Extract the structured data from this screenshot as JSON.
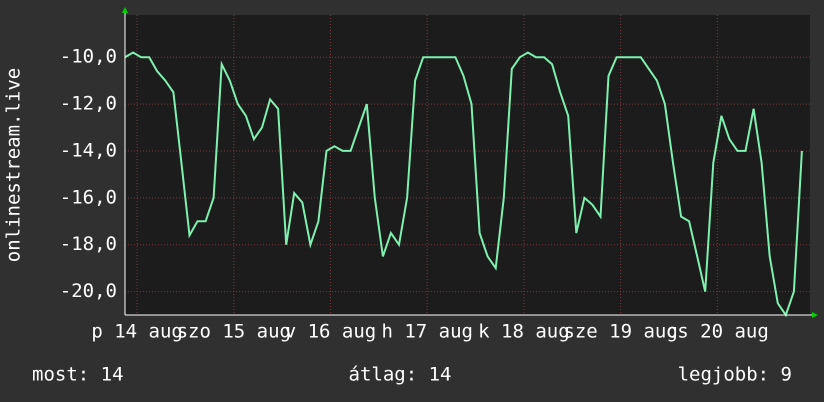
{
  "chart_data": {
    "type": "line",
    "y_label": "onlinestream.live",
    "x": [
      0,
      2,
      4,
      6,
      8,
      10,
      12,
      14,
      16,
      18,
      20,
      22,
      24,
      26,
      28,
      30,
      32,
      34,
      36,
      38,
      40,
      42,
      44,
      46,
      48,
      50,
      52,
      54,
      56,
      58,
      60,
      62,
      64,
      66,
      68,
      70,
      72,
      74,
      76,
      78,
      80,
      82,
      84,
      86,
      88,
      90,
      92,
      94,
      96,
      98,
      100,
      102,
      104,
      106,
      108,
      110,
      112,
      114,
      116,
      118,
      120,
      122,
      124,
      126,
      128,
      130,
      132,
      134,
      136,
      138,
      140,
      142,
      144,
      146,
      148,
      150,
      152,
      154,
      156,
      158,
      160,
      162,
      164,
      166,
      168
    ],
    "series": [
      {
        "name": "onlinestream.live",
        "color": "#7ef0b0",
        "values": [
          -10,
          -9.8,
          -10,
          -10,
          -10.6,
          -11,
          -11.5,
          -14.5,
          -17.6,
          -17,
          -17,
          -16,
          -10.3,
          -11,
          -12,
          -12.5,
          -13.5,
          -13,
          -11.8,
          -12.2,
          -18,
          -15.8,
          -16.2,
          -18,
          -17,
          -14,
          -13.8,
          -14,
          -14,
          -13,
          -12,
          -16,
          -18.5,
          -17.5,
          -18,
          -16,
          -11,
          -10,
          -10,
          -10,
          -10,
          -10,
          -10.8,
          -12,
          -17.5,
          -18.5,
          -19,
          -16,
          -10.5,
          -10,
          -9.8,
          -10,
          -10,
          -10.3,
          -11.5,
          -12.5,
          -17.5,
          -16,
          -16.3,
          -16.8,
          -10.8,
          -10,
          -10,
          -10,
          -10,
          -10.5,
          -11,
          -12,
          -14.5,
          -16.8,
          -17,
          -18.5,
          -20,
          -14.5,
          -12.5,
          -13.5,
          -14,
          -14,
          -12.2,
          -14.5,
          -18.5,
          -20.5,
          -21,
          -20,
          -14
        ]
      }
    ],
    "xlim": [
      0,
      170
    ],
    "xticks": [
      {
        "value": 3,
        "label": "p 14 aug"
      },
      {
        "value": 27,
        "label": "szo 15 aug"
      },
      {
        "value": 51,
        "label": "v 16 aug"
      },
      {
        "value": 75,
        "label": "h 17 aug"
      },
      {
        "value": 99,
        "label": "k 18 aug"
      },
      {
        "value": 123,
        "label": "sze 19 aug"
      },
      {
        "value": 147,
        "label": "cs 20 aug"
      }
    ],
    "ylim": [
      -21,
      -8.2
    ],
    "yticks": [
      {
        "value": -20,
        "label": "-20,0"
      },
      {
        "value": -18,
        "label": "-18,0"
      },
      {
        "value": -16,
        "label": "-16,0"
      },
      {
        "value": -14,
        "label": "-14,0"
      },
      {
        "value": -12,
        "label": "-12,0"
      },
      {
        "value": -10,
        "label": "-10,0"
      }
    ],
    "grid": true,
    "footer": [
      "most: 14",
      "átlag: 14",
      "legjobb: 9"
    ]
  }
}
